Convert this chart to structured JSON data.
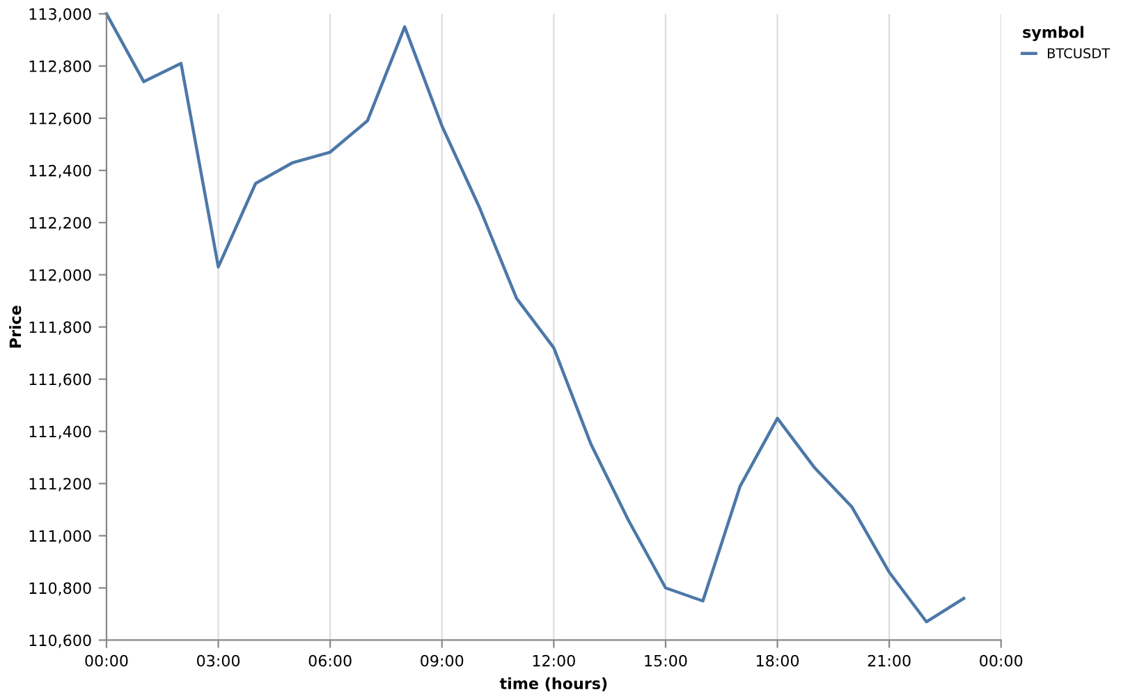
{
  "chart_data": {
    "type": "line",
    "xlabel": "time (hours)",
    "ylabel": "Price",
    "legend_title": "symbol",
    "x": [
      0,
      1,
      2,
      3,
      4,
      5,
      6,
      7,
      8,
      9,
      10,
      11,
      12,
      13,
      14,
      15,
      16,
      17,
      18,
      19,
      20,
      21,
      22,
      23
    ],
    "series": [
      {
        "name": "BTCUSDT",
        "color": "#4c78a8",
        "values": [
          113000,
          112740,
          112810,
          112030,
          112350,
          112430,
          112470,
          112590,
          112950,
          112570,
          112260,
          111910,
          111720,
          111350,
          111060,
          110800,
          110750,
          111190,
          111450,
          111260,
          111110,
          110860,
          110670,
          110760
        ]
      }
    ],
    "xlim": [
      0,
      24
    ],
    "xticks": [
      {
        "value": 0,
        "label": "00:00"
      },
      {
        "value": 3,
        "label": "03:00"
      },
      {
        "value": 6,
        "label": "06:00"
      },
      {
        "value": 9,
        "label": "09:00"
      },
      {
        "value": 12,
        "label": "12:00"
      },
      {
        "value": 15,
        "label": "15:00"
      },
      {
        "value": 18,
        "label": "18:00"
      },
      {
        "value": 21,
        "label": "21:00"
      },
      {
        "value": 24,
        "label": "00:00"
      }
    ],
    "ylim": [
      110600,
      113000
    ],
    "yticks": [
      {
        "value": 110600,
        "label": "110,600"
      },
      {
        "value": 110800,
        "label": "110,800"
      },
      {
        "value": 111000,
        "label": "111,000"
      },
      {
        "value": 111200,
        "label": "111,200"
      },
      {
        "value": 111400,
        "label": "111,400"
      },
      {
        "value": 111600,
        "label": "111,600"
      },
      {
        "value": 111800,
        "label": "111,800"
      },
      {
        "value": 112000,
        "label": "112,000"
      },
      {
        "value": 112200,
        "label": "112,200"
      },
      {
        "value": 112400,
        "label": "112,400"
      },
      {
        "value": 112600,
        "label": "112,600"
      },
      {
        "value": 112800,
        "label": "112,800"
      },
      {
        "value": 113000,
        "label": "113,000"
      }
    ],
    "grid": "x",
    "legend": "top right",
    "marker": "none",
    "line_style": "solid"
  }
}
